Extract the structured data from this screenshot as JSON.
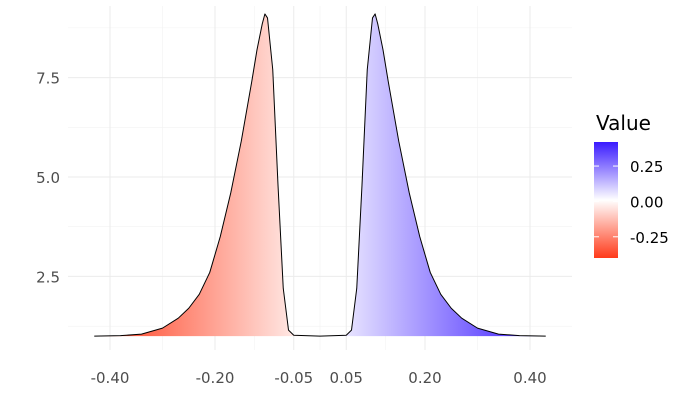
{
  "chart_data": {
    "type": "area",
    "title": "",
    "xlabel": "",
    "ylabel": "",
    "xlim": [
      -0.48,
      0.48
    ],
    "ylim": [
      0.65,
      9.3
    ],
    "x_ticks": [
      -0.4,
      -0.2,
      -0.05,
      0.05,
      0.2,
      0.4
    ],
    "x_tick_labels": [
      "-0.40",
      "-0.20",
      "-0.05",
      "0.05",
      "0.20",
      "0.40"
    ],
    "y_ticks": [
      2.5,
      5.0,
      7.5
    ],
    "y_tick_labels": [
      "2.5",
      "5.0",
      "7.5"
    ],
    "grid": true,
    "baseline": 1.0,
    "series": [
      {
        "x": [
          -0.43,
          -0.38,
          -0.34,
          -0.3,
          -0.27,
          -0.25,
          -0.23,
          -0.21,
          -0.19,
          -0.17,
          -0.15,
          -0.13,
          -0.12,
          -0.11,
          -0.105,
          -0.1,
          -0.09,
          -0.08,
          -0.07,
          -0.06,
          -0.05,
          0.0
        ],
        "y": [
          1.0,
          1.01,
          1.05,
          1.2,
          1.45,
          1.7,
          2.05,
          2.6,
          3.5,
          4.6,
          5.9,
          7.4,
          8.2,
          8.85,
          9.1,
          9.0,
          7.7,
          4.8,
          2.2,
          1.15,
          1.02,
          1.0
        ]
      },
      {
        "x": [
          0.0,
          0.05,
          0.06,
          0.07,
          0.08,
          0.09,
          0.1,
          0.105,
          0.11,
          0.12,
          0.13,
          0.15,
          0.17,
          0.19,
          0.21,
          0.23,
          0.25,
          0.27,
          0.3,
          0.34,
          0.38,
          0.43
        ],
        "y": [
          1.0,
          1.02,
          1.15,
          2.2,
          4.8,
          7.7,
          9.0,
          9.1,
          8.85,
          8.2,
          7.4,
          5.9,
          4.6,
          3.5,
          2.6,
          2.05,
          1.7,
          1.45,
          1.2,
          1.05,
          1.01,
          1.0
        ]
      }
    ],
    "fill": {
      "variable": "x",
      "low_color": "#ff3a1a",
      "mid_color": "#ffffff",
      "high_color": "#3a1aff",
      "range": [
        -0.43,
        0.43
      ]
    },
    "legend": {
      "title": "Value",
      "placement": "right",
      "ticks": [
        0.25,
        0.0,
        -0.25
      ],
      "tick_labels": [
        "0.25",
        "0.00",
        "-0.25"
      ],
      "range": [
        -0.4,
        0.42
      ]
    }
  }
}
